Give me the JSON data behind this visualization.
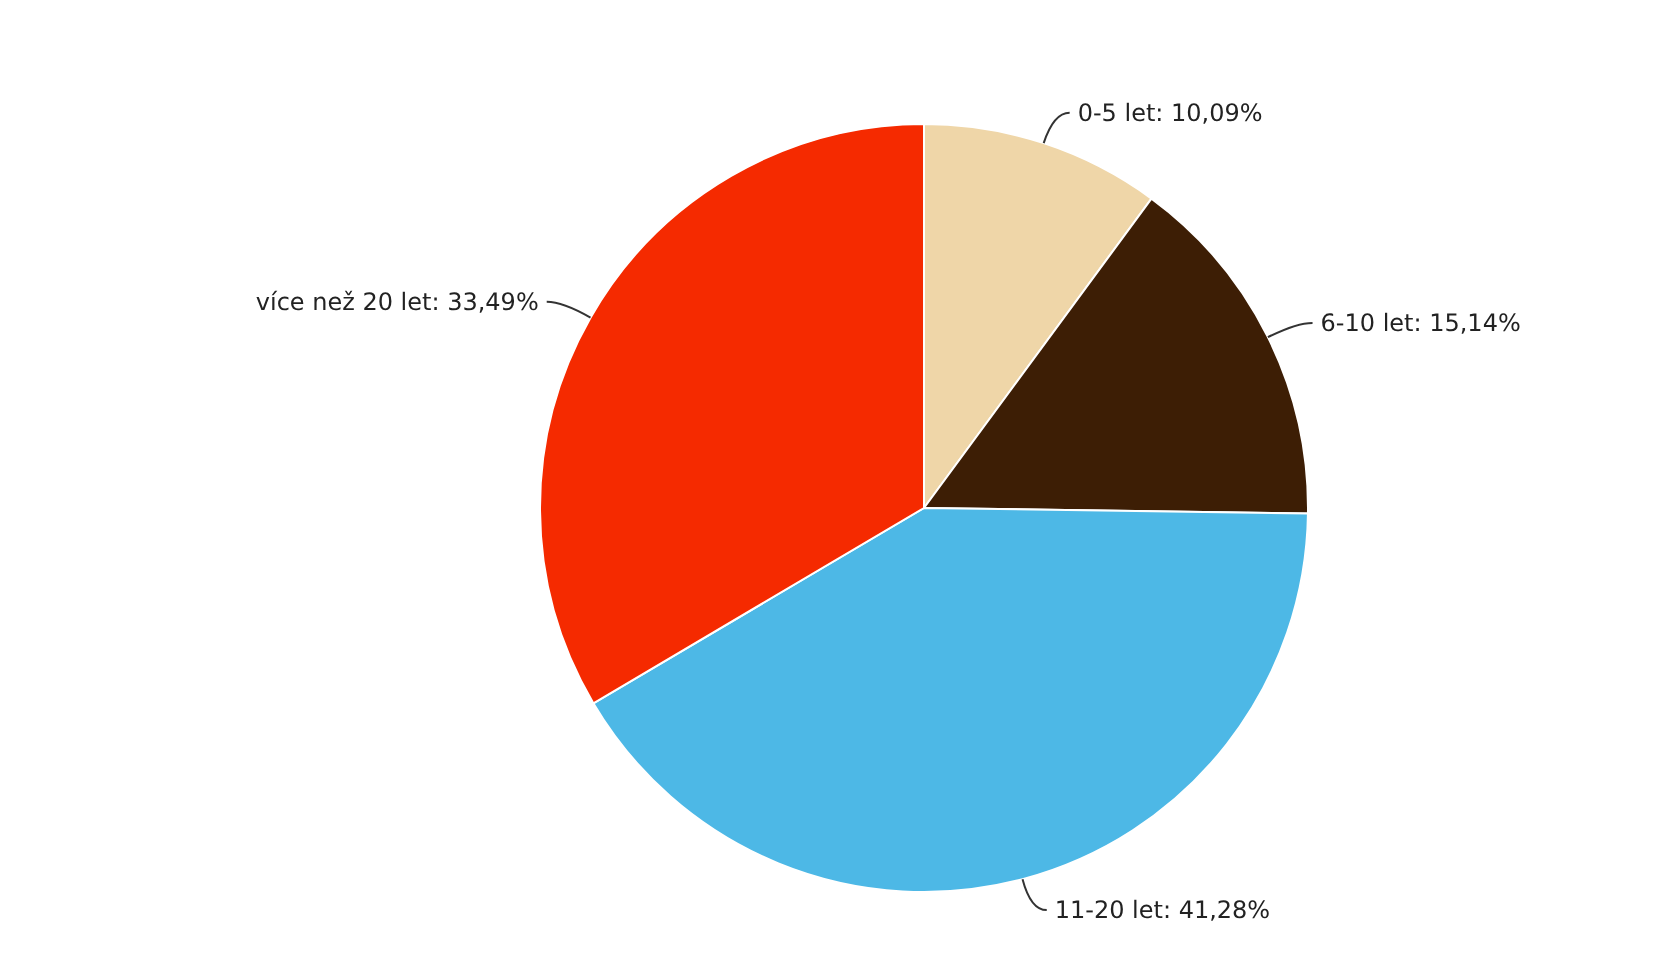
{
  "chart_data": {
    "type": "pie",
    "categories": [
      "0-5 let",
      "6-10 let",
      "11-20 let",
      "více než 20 let"
    ],
    "values": [
      10.09,
      15.14,
      41.28,
      33.49
    ],
    "value_labels": [
      "10,09%",
      "15,14%",
      "41,28%",
      "33,49%"
    ],
    "colors": [
      "#efd6a8",
      "#3d1e05",
      "#4db8e6",
      "#f52a00"
    ],
    "legend": false
  }
}
